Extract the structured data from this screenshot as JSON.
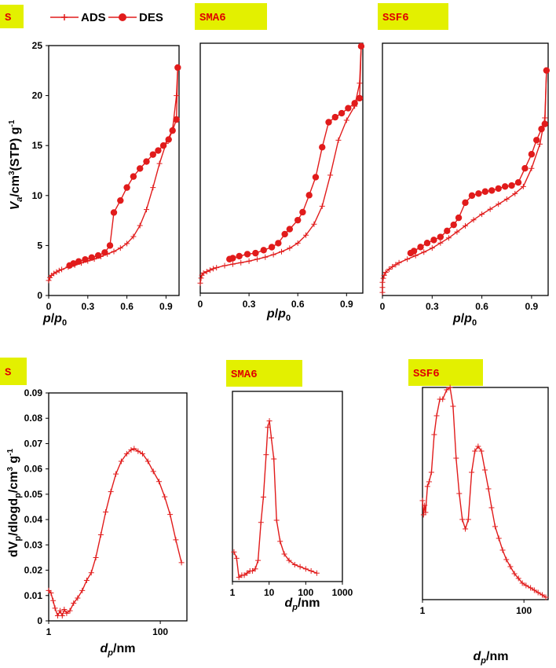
{
  "legend": {
    "ads_label": "ADS",
    "des_label": "DES"
  },
  "colors": {
    "series": "#e11b1b",
    "badge": "#e3f000",
    "badge_text": "#e00000"
  },
  "axis_labels": {
    "iso_x_main": "p",
    "iso_x_sub": "0",
    "iso_x_sep": "/",
    "iso_y_main": "V",
    "iso_y_sub": "a",
    "iso_y_rest": "/cm",
    "iso_y_sup": "3",
    "iso_y_tail": "(STP) g",
    "iso_y_sup2": "-1",
    "psd_x_main": "d",
    "psd_x_sub": "p",
    "psd_x_rest": "/nm",
    "psd_y_a": "dV",
    "psd_y_sub1": "p",
    "psd_y_b": "/dlogd",
    "psd_y_sub2": "p",
    "psd_y_c": "/cm",
    "psd_y_sup": "3",
    "psd_y_d": " g",
    "psd_y_sup2": "-1"
  },
  "chart_data": [
    {
      "id": "iso-s",
      "type": "line",
      "badge": "S",
      "xlim": [
        0,
        1
      ],
      "ylim": [
        0,
        25
      ],
      "xticks": [
        "0",
        "0.3",
        "0.6",
        "0.9"
      ],
      "xtick_values": [
        0,
        0.3,
        0.6,
        0.9
      ],
      "yticks": [
        "0",
        "5",
        "10",
        "15",
        "20",
        "25"
      ],
      "ytick_values": [
        0,
        5,
        10,
        15,
        20,
        25
      ],
      "series": [
        {
          "name": "ADS",
          "marker": "plus",
          "x": [
            0.0,
            0.01,
            0.02,
            0.04,
            0.06,
            0.08,
            0.1,
            0.15,
            0.2,
            0.25,
            0.3,
            0.35,
            0.4,
            0.45,
            0.5,
            0.55,
            0.6,
            0.65,
            0.7,
            0.75,
            0.8,
            0.85,
            0.9,
            0.95,
            0.98,
            0.99
          ],
          "y": [
            1.5,
            1.8,
            2.0,
            2.2,
            2.35,
            2.5,
            2.6,
            2.85,
            3.05,
            3.25,
            3.45,
            3.65,
            3.9,
            4.15,
            4.4,
            4.75,
            5.2,
            5.9,
            7.0,
            8.6,
            10.8,
            13.2,
            15.2,
            16.6,
            20.0,
            22.8
          ]
        },
        {
          "name": "DES",
          "marker": "circle",
          "x": [
            0.99,
            0.98,
            0.95,
            0.92,
            0.88,
            0.84,
            0.8,
            0.75,
            0.7,
            0.65,
            0.6,
            0.55,
            0.5,
            0.47,
            0.43,
            0.38,
            0.33,
            0.28,
            0.23,
            0.19,
            0.16
          ],
          "y": [
            22.8,
            17.6,
            16.5,
            15.6,
            15.0,
            14.5,
            14.1,
            13.4,
            12.7,
            11.9,
            10.8,
            9.5,
            8.3,
            5.0,
            4.3,
            4.0,
            3.8,
            3.6,
            3.4,
            3.2,
            3.0
          ]
        }
      ]
    },
    {
      "id": "iso-sma6",
      "type": "line",
      "badge": "SMA6",
      "xlim": [
        0,
        1
      ],
      "ylim": [
        0,
        25
      ],
      "xticks": [
        "0",
        "0.3",
        "0.6",
        "0.9"
      ],
      "xtick_values": [
        0,
        0.3,
        0.6,
        0.9
      ],
      "yticks": [],
      "ytick_values": [],
      "series": [
        {
          "name": "ADS",
          "marker": "plus",
          "x": [
            0.0,
            0.005,
            0.01,
            0.02,
            0.04,
            0.06,
            0.08,
            0.1,
            0.15,
            0.2,
            0.25,
            0.3,
            0.35,
            0.4,
            0.45,
            0.5,
            0.55,
            0.6,
            0.65,
            0.7,
            0.75,
            0.8,
            0.85,
            0.9,
            0.95,
            0.98,
            0.99
          ],
          "y": [
            1.0,
            1.5,
            1.8,
            2.0,
            2.15,
            2.3,
            2.45,
            2.55,
            2.75,
            2.9,
            3.05,
            3.2,
            3.4,
            3.6,
            3.85,
            4.15,
            4.5,
            5.0,
            5.8,
            6.9,
            8.7,
            11.8,
            15.3,
            17.3,
            18.7,
            21.0,
            24.7
          ]
        },
        {
          "name": "DES",
          "marker": "circle",
          "x": [
            0.99,
            0.98,
            0.95,
            0.91,
            0.87,
            0.83,
            0.79,
            0.75,
            0.71,
            0.67,
            0.63,
            0.6,
            0.55,
            0.52,
            0.48,
            0.44,
            0.39,
            0.34,
            0.29,
            0.24,
            0.2,
            0.18
          ],
          "y": [
            24.7,
            19.5,
            19.0,
            18.5,
            18.0,
            17.6,
            17.1,
            14.6,
            11.6,
            9.8,
            8.1,
            7.3,
            6.4,
            5.9,
            5.0,
            4.6,
            4.3,
            4.0,
            3.9,
            3.7,
            3.5,
            3.4
          ]
        }
      ]
    },
    {
      "id": "iso-ssf6",
      "type": "line",
      "badge": "SSF6",
      "xlim": [
        0,
        1
      ],
      "ylim": [
        0,
        25
      ],
      "xticks": [
        "0",
        "0.3",
        "0.6",
        "0.9"
      ],
      "xtick_values": [
        0,
        0.3,
        0.6,
        0.9
      ],
      "yticks": [],
      "ytick_values": [],
      "series": [
        {
          "name": "ADS",
          "marker": "plus",
          "x": [
            0.0,
            0.0,
            0.0,
            0.005,
            0.01,
            0.02,
            0.04,
            0.06,
            0.08,
            0.1,
            0.15,
            0.2,
            0.25,
            0.3,
            0.35,
            0.4,
            0.45,
            0.5,
            0.55,
            0.6,
            0.65,
            0.7,
            0.75,
            0.8,
            0.85,
            0.9,
            0.95,
            0.98,
            0.99
          ],
          "y": [
            0.3,
            0.8,
            1.3,
            1.7,
            2.0,
            2.3,
            2.6,
            2.85,
            3.05,
            3.25,
            3.6,
            3.95,
            4.3,
            4.7,
            5.2,
            5.7,
            6.3,
            6.9,
            7.5,
            8.05,
            8.55,
            9.05,
            9.55,
            10.1,
            10.8,
            12.6,
            15.0,
            17.6,
            22.3
          ]
        },
        {
          "name": "DES",
          "marker": "circle",
          "x": [
            0.99,
            0.98,
            0.96,
            0.93,
            0.9,
            0.86,
            0.82,
            0.78,
            0.74,
            0.7,
            0.66,
            0.62,
            0.58,
            0.54,
            0.5,
            0.46,
            0.43,
            0.39,
            0.35,
            0.31,
            0.27,
            0.23,
            0.19,
            0.17
          ],
          "y": [
            22.3,
            17.0,
            16.5,
            15.4,
            14.0,
            12.6,
            11.2,
            10.9,
            10.8,
            10.6,
            10.4,
            10.3,
            10.1,
            9.9,
            9.2,
            7.7,
            7.0,
            6.4,
            5.8,
            5.5,
            5.2,
            4.8,
            4.4,
            4.2
          ]
        }
      ]
    },
    {
      "id": "psd-s",
      "type": "line",
      "badge": "S",
      "xscale": "log",
      "xlim": [
        1,
        300
      ],
      "ylim": [
        0,
        0.09
      ],
      "xticks": [
        "1",
        "100"
      ],
      "xtick_values": [
        1,
        100
      ],
      "yticks": [
        "0",
        "0.01",
        "0.02",
        "0.03",
        "0.04",
        "0.05",
        "0.06",
        "0.07",
        "0.08",
        "0.09"
      ],
      "ytick_values": [
        0,
        0.01,
        0.02,
        0.03,
        0.04,
        0.05,
        0.06,
        0.07,
        0.08,
        0.09
      ],
      "series": [
        {
          "name": "ADS",
          "marker": "plus",
          "x": [
            1.0,
            1.1,
            1.2,
            1.3,
            1.45,
            1.6,
            1.75,
            1.9,
            2.1,
            2.4,
            2.8,
            3.3,
            4.0,
            4.8,
            5.8,
            7.0,
            8.6,
            10.5,
            13.0,
            16.0,
            20.0,
            25.0,
            30.0,
            34.0,
            40.0,
            48.0,
            60.0,
            75.0,
            95.0,
            120.0,
            150.0,
            190.0,
            240.0
          ],
          "y": [
            0.012,
            0.011,
            0.008,
            0.005,
            0.002,
            0.004,
            0.002,
            0.0045,
            0.003,
            0.004,
            0.007,
            0.009,
            0.012,
            0.016,
            0.019,
            0.025,
            0.034,
            0.043,
            0.051,
            0.058,
            0.063,
            0.066,
            0.0675,
            0.068,
            0.067,
            0.066,
            0.063,
            0.059,
            0.055,
            0.049,
            0.042,
            0.032,
            0.023
          ]
        }
      ]
    },
    {
      "id": "psd-sma6",
      "type": "line",
      "badge": "SMA6",
      "xscale": "log",
      "xlim": [
        1,
        1000
      ],
      "ylim": [
        0,
        0.09
      ],
      "xticks": [
        "1",
        "10",
        "100",
        "1000"
      ],
      "xtick_values": [
        1,
        10,
        100,
        1000
      ],
      "yticks": [],
      "ytick_values": [],
      "series": [
        {
          "name": "ADS",
          "marker": "plus",
          "x": [
            1.1,
            1.3,
            1.5,
            1.8,
            2.1,
            2.5,
            3.0,
            3.5,
            4.2,
            5.0,
            6.0,
            7.0,
            8.3,
            9.2,
            10.2,
            11.5,
            13.5,
            16.0,
            20.0,
            26.0,
            35.0,
            50.0,
            70.0,
            100.0,
            140.0,
            200.0
          ],
          "y": [
            0.014,
            0.011,
            0.002,
            0.003,
            0.003,
            0.004,
            0.005,
            0.005,
            0.006,
            0.01,
            0.028,
            0.04,
            0.06,
            0.073,
            0.076,
            0.068,
            0.058,
            0.029,
            0.019,
            0.013,
            0.01,
            0.008,
            0.007,
            0.006,
            0.005,
            0.004
          ]
        }
      ]
    },
    {
      "id": "psd-ssf6",
      "type": "line",
      "badge": "SSF6",
      "xscale": "log",
      "xlim": [
        1,
        300
      ],
      "ylim": [
        0,
        0.09
      ],
      "xticks": [
        "1",
        "100"
      ],
      "xtick_values": [
        1,
        100
      ],
      "yticks": [],
      "ytick_values": [],
      "series": [
        {
          "name": "ADS",
          "marker": "plus",
          "x": [
            1.0,
            1.05,
            1.1,
            1.15,
            1.25,
            1.35,
            1.5,
            1.7,
            1.9,
            2.2,
            2.5,
            3.0,
            3.5,
            4.0,
            4.6,
            5.3,
            6.1,
            7.0,
            8.0,
            9.3,
            10.8,
            12.5,
            14.5,
            17.0,
            20.0,
            23.0,
            27.0,
            32.0,
            38.0,
            45.0,
            54.0,
            65.0,
            78.0,
            93.0,
            110.0,
            135.0,
            160.0,
            190.0,
            230.0,
            270.0
          ],
          "y": [
            0.042,
            0.036,
            0.04,
            0.037,
            0.048,
            0.05,
            0.054,
            0.07,
            0.078,
            0.085,
            0.085,
            0.089,
            0.09,
            0.082,
            0.06,
            0.045,
            0.034,
            0.03,
            0.034,
            0.054,
            0.063,
            0.065,
            0.063,
            0.055,
            0.047,
            0.039,
            0.031,
            0.026,
            0.021,
            0.017,
            0.014,
            0.011,
            0.009,
            0.007,
            0.006,
            0.005,
            0.004,
            0.003,
            0.002,
            0.001
          ]
        }
      ]
    }
  ]
}
